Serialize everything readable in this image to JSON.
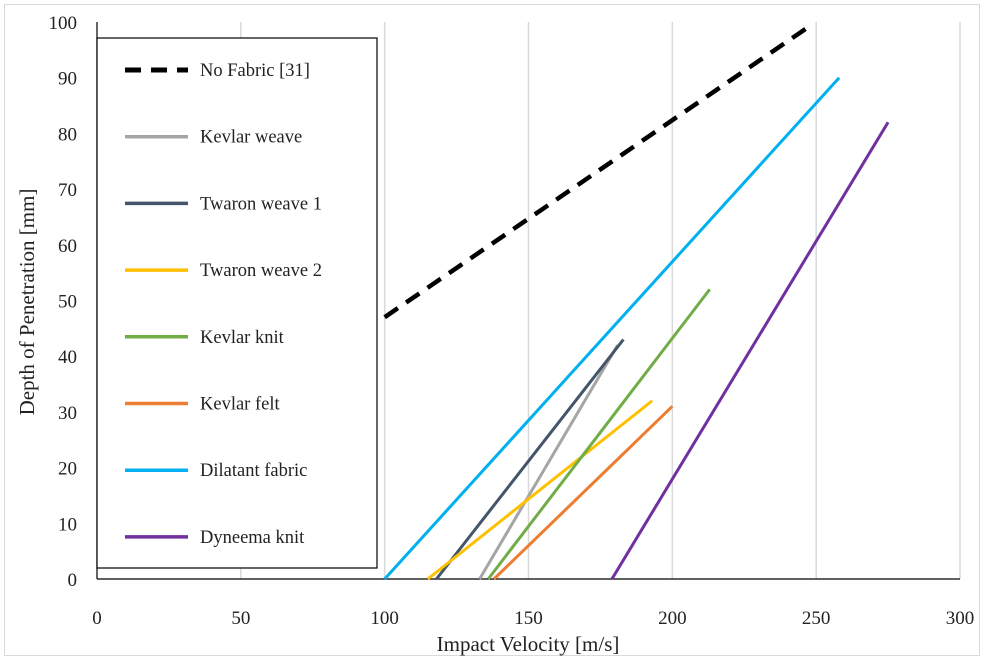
{
  "chart_data": {
    "type": "line",
    "title": "",
    "xlabel": "Impact Velocity  [m/s]",
    "ylabel": "Depth of Penetration [mm]",
    "xlim": [
      0,
      300
    ],
    "ylim": [
      0,
      100
    ],
    "xticks": [
      0,
      50,
      100,
      150,
      200,
      250,
      300
    ],
    "yticks": [
      0,
      10,
      20,
      30,
      40,
      50,
      60,
      70,
      80,
      90,
      100
    ],
    "grid": "vertical",
    "legend_position": "top-left",
    "series": [
      {
        "name": "No Fabric [31]",
        "color": "#000000",
        "dashed": true,
        "width": 4.5,
        "x": [
          100,
          247
        ],
        "y": [
          47,
          99
        ]
      },
      {
        "name": "Kevlar weave",
        "color": "#a5a5a5",
        "dashed": false,
        "width": 3,
        "x": [
          133,
          181
        ],
        "y": [
          0,
          42
        ]
      },
      {
        "name": "Twaron weave 1",
        "color": "#44546a",
        "dashed": false,
        "width": 3,
        "x": [
          118,
          183
        ],
        "y": [
          0,
          43
        ]
      },
      {
        "name": "Twaron weave 2",
        "color": "#ffc000",
        "dashed": false,
        "width": 3,
        "x": [
          115,
          193
        ],
        "y": [
          0,
          32
        ]
      },
      {
        "name": "Kevlar knit",
        "color": "#70ad47",
        "dashed": false,
        "width": 3,
        "x": [
          136,
          213
        ],
        "y": [
          0,
          52
        ]
      },
      {
        "name": "Kevlar felt",
        "color": "#ed7d31",
        "dashed": false,
        "width": 3,
        "x": [
          138,
          200
        ],
        "y": [
          0,
          31
        ]
      },
      {
        "name": "Dilatant fabric",
        "color": "#00b0f0",
        "dashed": false,
        "width": 3,
        "x": [
          100,
          258
        ],
        "y": [
          0,
          90
        ]
      },
      {
        "name": "Dyneema knit",
        "color": "#7030a0",
        "dashed": false,
        "width": 3,
        "x": [
          179,
          275
        ],
        "y": [
          0,
          82
        ]
      }
    ]
  }
}
